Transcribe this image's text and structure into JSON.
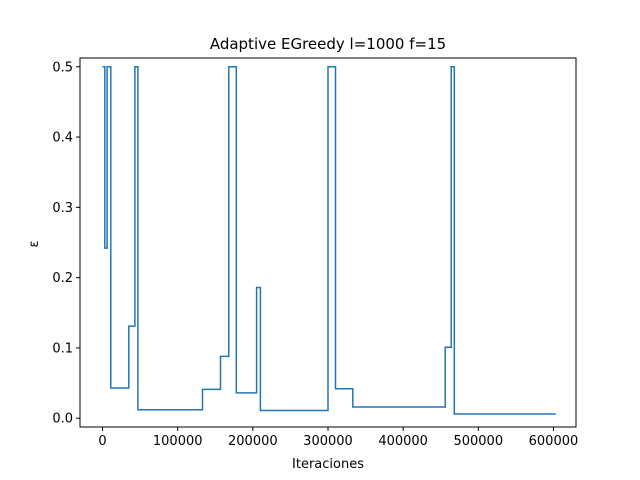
{
  "chart_data": {
    "type": "line",
    "title": "Adaptive EGreedy l=1000 f=15",
    "xlabel": "Iteraciones",
    "ylabel": "ε",
    "xlim": [
      -30000,
      630000
    ],
    "ylim": [
      -0.0125,
      0.5125
    ],
    "xticks": [
      0,
      100000,
      200000,
      300000,
      400000,
      500000,
      600000
    ],
    "xtick_labels": [
      "0",
      "100000",
      "200000",
      "300000",
      "400000",
      "500000",
      "600000"
    ],
    "yticks": [
      0.0,
      0.1,
      0.2,
      0.3,
      0.4,
      0.5
    ],
    "ytick_labels": [
      "0.0",
      "0.1",
      "0.2",
      "0.3",
      "0.4",
      "0.5"
    ],
    "grid": false,
    "step": "post",
    "line_color": "#1f77b4",
    "series": [
      {
        "x": [
          0,
          3000,
          6000,
          11000,
          35000,
          43000,
          47000,
          133000,
          157000,
          168000,
          178000,
          205000,
          210000,
          300000,
          310000,
          333000,
          456000,
          464000,
          468000,
          603000
        ],
        "values": [
          0.5,
          0.242,
          0.5,
          0.043,
          0.131,
          0.5,
          0.012,
          0.041,
          0.088,
          0.5,
          0.036,
          0.186,
          0.011,
          0.5,
          0.042,
          0.016,
          0.101,
          0.5,
          0.006,
          0.006
        ]
      }
    ]
  }
}
